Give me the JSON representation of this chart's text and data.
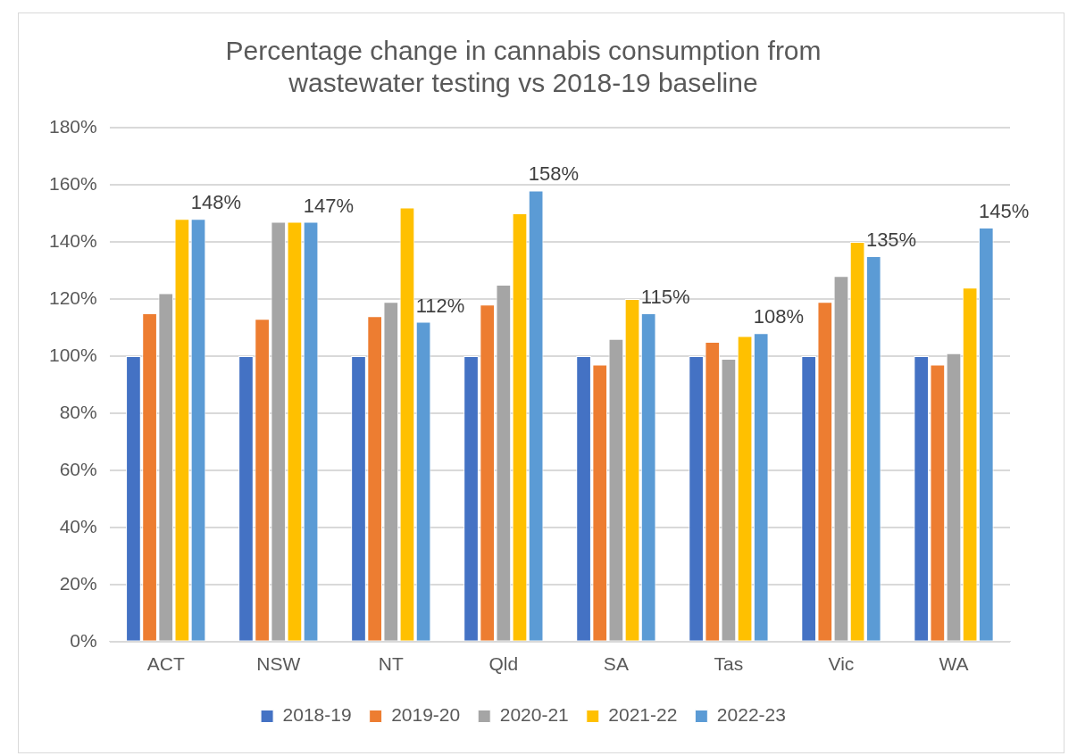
{
  "chart_data": {
    "type": "bar",
    "title": [
      "Percentage change in cannabis consumption from",
      "wastewater testing vs 2018-19 baseline"
    ],
    "categories": [
      "ACT",
      "NSW",
      "NT",
      "Qld",
      "SA",
      "Tas",
      "Vic",
      "WA"
    ],
    "series": [
      {
        "name": "2018-19",
        "color": "#4472c4",
        "values": [
          100,
          100,
          100,
          100,
          100,
          100,
          100,
          100
        ]
      },
      {
        "name": "2019-20",
        "color": "#ed7d31",
        "values": [
          115,
          113,
          114,
          118,
          97,
          105,
          119,
          97
        ]
      },
      {
        "name": "2020-21",
        "color": "#a5a5a5",
        "values": [
          122,
          147,
          119,
          125,
          106,
          99,
          128,
          101
        ]
      },
      {
        "name": "2021-22",
        "color": "#ffc000",
        "values": [
          148,
          147,
          152,
          150,
          120,
          107,
          140,
          124
        ]
      },
      {
        "name": "2022-23",
        "color": "#5b9bd5",
        "values": [
          148,
          147,
          112,
          158,
          115,
          108,
          135,
          145
        ],
        "value_labels": [
          "148%",
          "147%",
          "112%",
          "158%",
          "115%",
          "108%",
          "135%",
          "145%"
        ]
      }
    ],
    "ylim": [
      0,
      180
    ],
    "yticks": [
      {
        "value": 0,
        "label": "0%"
      },
      {
        "value": 20,
        "label": "20%"
      },
      {
        "value": 40,
        "label": "40%"
      },
      {
        "value": 60,
        "label": "60%"
      },
      {
        "value": 80,
        "label": "80%"
      },
      {
        "value": 100,
        "label": "100%"
      },
      {
        "value": 120,
        "label": "120%"
      },
      {
        "value": 140,
        "label": "140%"
      },
      {
        "value": 160,
        "label": "160%"
      },
      {
        "value": 180,
        "label": "180%"
      }
    ],
    "grid": "y",
    "legend": "bottom"
  }
}
